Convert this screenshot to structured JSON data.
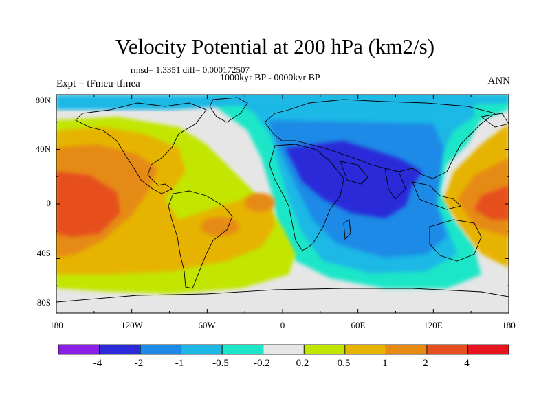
{
  "title": "Velocity Potential at 200 hPa (km2/s)",
  "stats": "rmsd= 1.3351 diff= 0.000172507",
  "period": "1000kyr BP - 0000kyr BP",
  "experiment": "Expt = tFmeu-tfmea",
  "season": "ANN",
  "lat_labels": [
    "80N",
    "40N",
    "0",
    "40S",
    "80S"
  ],
  "lon_labels": [
    "180",
    "120W",
    "60W",
    "0",
    "60E",
    "120E",
    "180"
  ],
  "colorbar": {
    "labels": [
      "-4",
      "-2",
      "-1",
      "-0.5",
      "-0.2",
      "0.2",
      "0.5",
      "1",
      "2",
      "4"
    ],
    "colors": [
      "#8c1ee6",
      "#2a2ad8",
      "#1c8ae6",
      "#1eb8e6",
      "#1ee6c8",
      "#e6e6e6",
      "#c2e600",
      "#e6b400",
      "#e68a14",
      "#e6501e",
      "#e6141e"
    ]
  },
  "field_colors": {
    "deep_negative": "#2a2ad8",
    "negative": "#1c8ae6",
    "weak_negative": "#1eb8e6",
    "near_zero_negative": "#1ee6c8",
    "neutral": "#e6e6e6",
    "weak_positive": "#c2e600",
    "positive": "#e6b400",
    "strong_positive": "#e68a14",
    "very_positive": "#e6501e"
  }
}
